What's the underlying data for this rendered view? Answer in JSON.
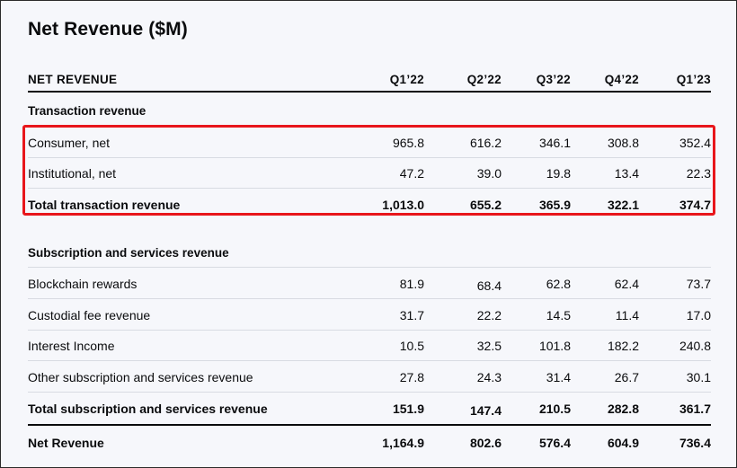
{
  "title": "Net Revenue ($M)",
  "header": {
    "label": "NET REVENUE",
    "columns": [
      "Q1’22",
      "Q2’22",
      "Q3’22",
      "Q4’22",
      "Q1’23"
    ]
  },
  "transaction": {
    "section_label": "Transaction revenue",
    "rows": [
      {
        "label": "Consumer, net",
        "values": [
          "965.8",
          "616.2",
          "346.1",
          "308.8",
          "352.4"
        ]
      },
      {
        "label": "Institutional, net",
        "values": [
          "47.2",
          "39.0",
          "19.8",
          "13.4",
          "22.3"
        ]
      }
    ],
    "total": {
      "label": "Total transaction revenue",
      "values": [
        "1,013.0",
        "655.2",
        "365.9",
        "322.1",
        "374.7"
      ]
    }
  },
  "subscription": {
    "section_label": "Subscription and services revenue",
    "rows": [
      {
        "label": "Blockchain rewards",
        "values": [
          "81.9",
          "68.4",
          "62.8",
          "62.4",
          "73.7"
        ]
      },
      {
        "label": "Custodial fee revenue",
        "values": [
          "31.7",
          "22.2",
          "14.5",
          "11.4",
          "17.0"
        ]
      },
      {
        "label": "Interest Income",
        "values": [
          "10.5",
          "32.5",
          "101.8",
          "182.2",
          "240.8"
        ]
      },
      {
        "label": "Other subscription and services revenue",
        "values": [
          "27.8",
          "24.3",
          "31.4",
          "26.7",
          "30.1"
        ]
      }
    ],
    "total": {
      "label": "Total subscription and services revenue",
      "values": [
        "151.9",
        "147.4",
        "210.5",
        "282.8",
        "361.7"
      ]
    }
  },
  "net_revenue": {
    "label": "Net Revenue",
    "values": [
      "1,164.9",
      "802.6",
      "576.4",
      "604.9",
      "736.4"
    ]
  },
  "colors": {
    "highlight": "#e8161b",
    "background": "#f6f7fb",
    "text": "#0a0b0d"
  }
}
